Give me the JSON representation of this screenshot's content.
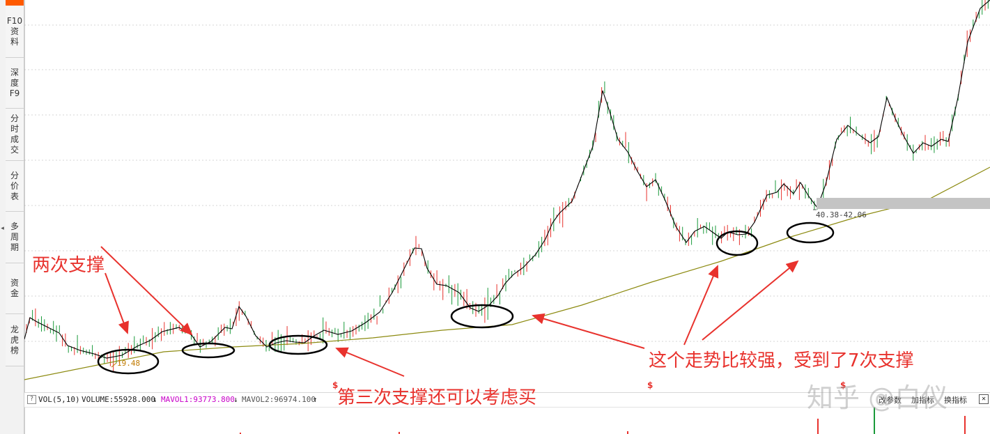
{
  "sidebar": {
    "items": [
      {
        "label": "F10资料",
        "lines": [
          "F10",
          "资",
          "料"
        ]
      },
      {
        "label": "深度F9",
        "lines": [
          "深",
          "度",
          "F9"
        ]
      },
      {
        "label": "分时成交",
        "lines": [
          "分",
          "时",
          "成",
          "交"
        ]
      },
      {
        "label": "分价表",
        "lines": [
          "分",
          "价",
          "表"
        ]
      },
      {
        "label": "多周期",
        "lines": [
          "多",
          "周",
          "期"
        ]
      },
      {
        "label": "资金",
        "lines": [
          "资",
          "金"
        ]
      },
      {
        "label": "龙虎榜",
        "lines": [
          "龙",
          "虎",
          "榜"
        ]
      }
    ]
  },
  "price_labels": {
    "low_value": "19.48",
    "range_label": "40.38-42.06"
  },
  "markers": {
    "symbol": "$"
  },
  "volume_bar": {
    "help": "?",
    "indicator": "VOL(5,10)",
    "volume": "VOLUME:55928.000",
    "mavol1": "MAVOL1:93773.800",
    "mavol2": "MAVOL2:96974.100",
    "down_arrow": "↓",
    "up_arrow": "↑",
    "ctrl1": "改参数",
    "ctrl2": "加指标",
    "ctrl3": "换指标",
    "close": "✕"
  },
  "annotations": {
    "two_supports": "两次支撑",
    "third_support": "第三次支撑还可以考虑买",
    "strong_trend": "这个走势比较强，受到了7次支撑"
  },
  "watermark": "知乎 @白仪",
  "colors": {
    "up": "#e8322d",
    "down": "#1a9a3a",
    "ma_short": "#000000",
    "ma_long": "#8c8a10",
    "mavol1": "#c800c8",
    "annotation": "#e8322d"
  }
}
